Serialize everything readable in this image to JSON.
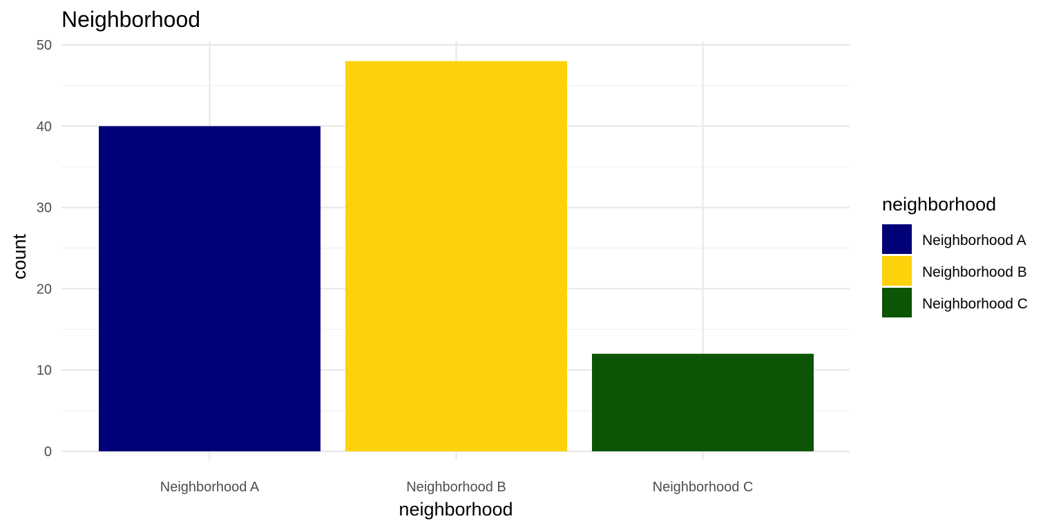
{
  "chart_data": {
    "type": "bar",
    "title": "Neighborhood",
    "xlabel": "neighborhood",
    "ylabel": "count",
    "categories": [
      "Neighborhood A",
      "Neighborhood B",
      "Neighborhood C"
    ],
    "values": [
      40,
      48,
      12
    ],
    "colors": [
      "#000077",
      "#fdd20a",
      "#0b5504"
    ],
    "ylim": [
      0,
      50
    ],
    "yticks": [
      0,
      10,
      20,
      30,
      40,
      50
    ],
    "ytick_labels": [
      "0",
      "10",
      "20",
      "30",
      "40",
      "50"
    ],
    "grid": true,
    "legend": {
      "title": "neighborhood",
      "position": "right",
      "entries": [
        "Neighborhood A",
        "Neighborhood B",
        "Neighborhood C"
      ]
    }
  }
}
